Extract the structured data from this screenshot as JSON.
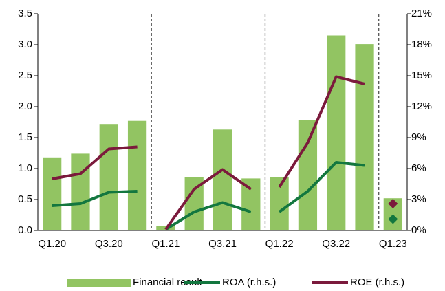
{
  "chart_data": {
    "type": "bar",
    "categories": [
      "Q1.20",
      null,
      "Q3.20",
      null,
      "Q1.21",
      null,
      "Q3.21",
      null,
      "Q1.22",
      null,
      "Q3.22",
      null,
      "Q1.23"
    ],
    "series": [
      {
        "name": "Financial result",
        "type": "bar",
        "color": "#92c462",
        "values": [
          1.18,
          1.24,
          1.72,
          1.77,
          0.07,
          0.86,
          1.63,
          0.84,
          0.86,
          1.78,
          3.15,
          3.01,
          0.52
        ]
      },
      {
        "name": "ROA (r.h.s.)",
        "type": "line",
        "axis": "y2",
        "color": "#13773f",
        "values": [
          2.4,
          2.6,
          3.7,
          3.8,
          0.1,
          1.8,
          2.7,
          1.8,
          1.8,
          3.8,
          6.6,
          6.3,
          1.1
        ]
      },
      {
        "name": "ROE (r.h.s.)",
        "type": "line",
        "axis": "y2",
        "color": "#7b1a3c",
        "values": [
          5.0,
          5.5,
          7.9,
          8.1,
          0.1,
          4.0,
          5.9,
          4.0,
          4.2,
          8.5,
          14.9,
          14.2,
          2.6
        ]
      }
    ],
    "separators": [
      4,
      8,
      12
    ],
    "ylim": [
      0,
      3.5
    ],
    "yticks": [
      {
        "value": 0,
        "label": "0.0"
      },
      0.5,
      {
        "value": 1,
        "label": "1.0"
      },
      1.5,
      {
        "value": 2,
        "label": "2.0"
      },
      2.5,
      {
        "value": 3,
        "label": "3.0"
      },
      3.5
    ],
    "y2lim": [
      0,
      21
    ],
    "y2ticks": [
      {
        "value": 0,
        "label": "0%"
      },
      {
        "value": 3,
        "label": "3%"
      },
      {
        "value": 6,
        "label": "6%"
      },
      {
        "value": 9,
        "label": "9%"
      },
      {
        "value": 12,
        "label": "12%"
      },
      {
        "value": 15,
        "label": "15%"
      },
      {
        "value": 18,
        "label": "18%"
      },
      {
        "value": 21,
        "label": "21%"
      }
    ],
    "legend": "bottom"
  }
}
